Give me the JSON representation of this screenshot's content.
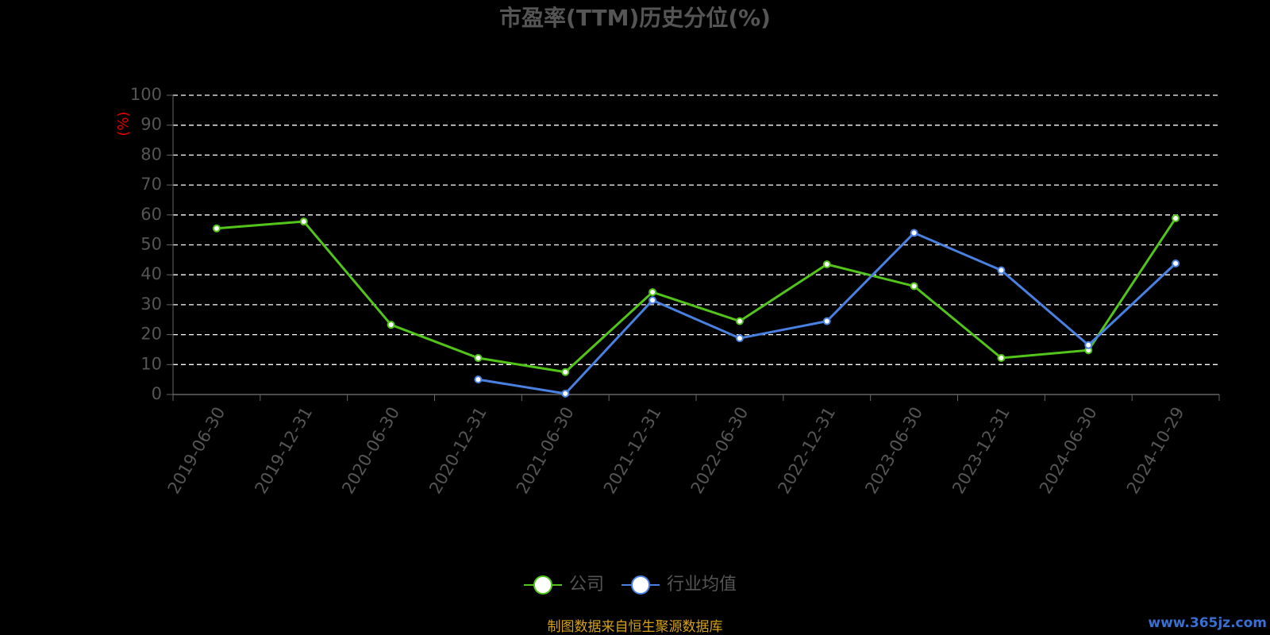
{
  "chart_data": {
    "type": "line",
    "title": "市盈率(TTM)历史分位(%)",
    "y_label": "(%)",
    "categories": [
      "2019-06-30",
      "2019-12-31",
      "2020-06-30",
      "2020-12-31",
      "2021-06-30",
      "2021-12-31",
      "2022-06-30",
      "2022-12-31",
      "2023-06-30",
      "2023-12-31",
      "2024-06-30",
      "2024-10-29"
    ],
    "series": [
      {
        "name": "公司",
        "color": "#52c41a",
        "values": [
          55.5,
          57.8,
          23.3,
          12.2,
          7.5,
          34.2,
          24.5,
          43.5,
          36.2,
          12.2,
          14.8,
          58.9
        ]
      },
      {
        "name": "行业均值",
        "color": "#4a80e0",
        "values": [
          null,
          null,
          null,
          5.0,
          0.3,
          31.5,
          18.8,
          24.5,
          54.0,
          41.5,
          16.5,
          43.8
        ]
      }
    ],
    "ylim": [
      0,
      100
    ],
    "yticks": [
      0,
      10,
      20,
      30,
      40,
      50,
      60,
      70,
      80,
      90,
      100
    ],
    "grid": true,
    "source": "制图数据来自恒生聚源数据库",
    "watermark": "www.365jz.com"
  }
}
